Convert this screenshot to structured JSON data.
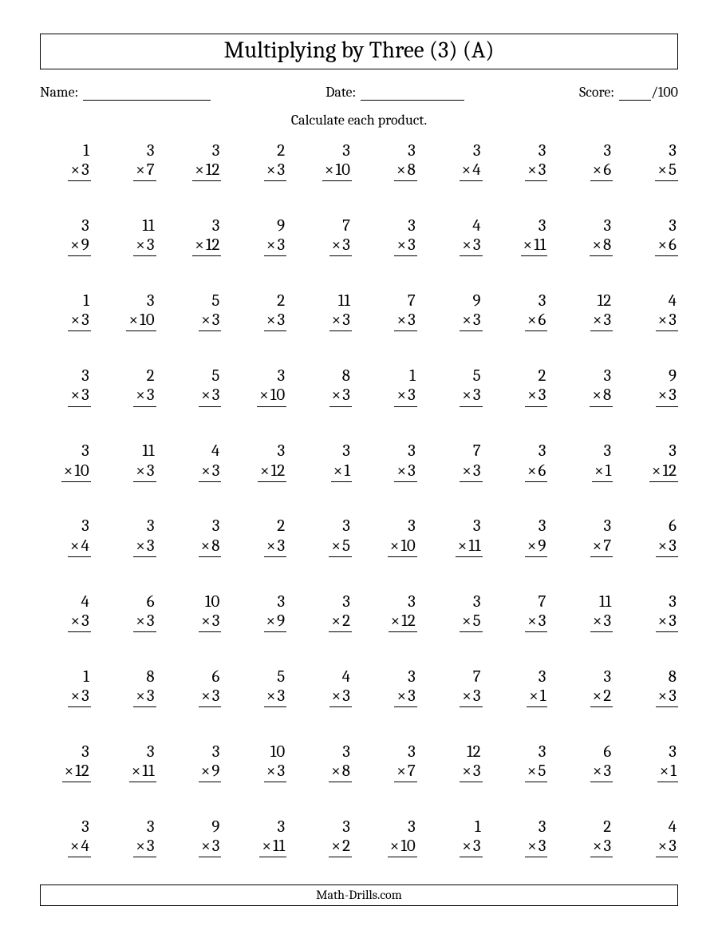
{
  "title": "Multiplying by Three (3) (A)",
  "header": {
    "name_label": "Name:",
    "date_label": "Date:",
    "score_label": "Score:",
    "score_suffix": "/100"
  },
  "instruction": "Calculate each product.",
  "footer": "Math-Drills.com",
  "multiply_symbol": "×",
  "layout": {
    "columns": 10,
    "rows": 10,
    "background_color": "#ffffff",
    "text_color": "#000000",
    "title_fontsize": 29,
    "body_fontsize": 18,
    "problem_fontsize": 21,
    "footer_fontsize": 16
  },
  "problems": [
    {
      "a": 1,
      "b": 3
    },
    {
      "a": 3,
      "b": 7
    },
    {
      "a": 3,
      "b": 12
    },
    {
      "a": 2,
      "b": 3
    },
    {
      "a": 3,
      "b": 10
    },
    {
      "a": 3,
      "b": 8
    },
    {
      "a": 3,
      "b": 4
    },
    {
      "a": 3,
      "b": 3
    },
    {
      "a": 3,
      "b": 6
    },
    {
      "a": 3,
      "b": 5
    },
    {
      "a": 3,
      "b": 9
    },
    {
      "a": 11,
      "b": 3
    },
    {
      "a": 3,
      "b": 12
    },
    {
      "a": 9,
      "b": 3
    },
    {
      "a": 7,
      "b": 3
    },
    {
      "a": 3,
      "b": 3
    },
    {
      "a": 4,
      "b": 3
    },
    {
      "a": 3,
      "b": 11
    },
    {
      "a": 3,
      "b": 8
    },
    {
      "a": 3,
      "b": 6
    },
    {
      "a": 1,
      "b": 3
    },
    {
      "a": 3,
      "b": 10
    },
    {
      "a": 5,
      "b": 3
    },
    {
      "a": 2,
      "b": 3
    },
    {
      "a": 11,
      "b": 3
    },
    {
      "a": 7,
      "b": 3
    },
    {
      "a": 9,
      "b": 3
    },
    {
      "a": 3,
      "b": 6
    },
    {
      "a": 12,
      "b": 3
    },
    {
      "a": 4,
      "b": 3
    },
    {
      "a": 3,
      "b": 3
    },
    {
      "a": 2,
      "b": 3
    },
    {
      "a": 5,
      "b": 3
    },
    {
      "a": 3,
      "b": 10
    },
    {
      "a": 8,
      "b": 3
    },
    {
      "a": 1,
      "b": 3
    },
    {
      "a": 5,
      "b": 3
    },
    {
      "a": 2,
      "b": 3
    },
    {
      "a": 3,
      "b": 8
    },
    {
      "a": 9,
      "b": 3
    },
    {
      "a": 3,
      "b": 10
    },
    {
      "a": 11,
      "b": 3
    },
    {
      "a": 4,
      "b": 3
    },
    {
      "a": 3,
      "b": 12
    },
    {
      "a": 3,
      "b": 1
    },
    {
      "a": 3,
      "b": 3
    },
    {
      "a": 7,
      "b": 3
    },
    {
      "a": 3,
      "b": 6
    },
    {
      "a": 3,
      "b": 1
    },
    {
      "a": 3,
      "b": 12
    },
    {
      "a": 3,
      "b": 4
    },
    {
      "a": 3,
      "b": 3
    },
    {
      "a": 3,
      "b": 8
    },
    {
      "a": 2,
      "b": 3
    },
    {
      "a": 3,
      "b": 5
    },
    {
      "a": 3,
      "b": 10
    },
    {
      "a": 3,
      "b": 11
    },
    {
      "a": 3,
      "b": 9
    },
    {
      "a": 3,
      "b": 7
    },
    {
      "a": 6,
      "b": 3
    },
    {
      "a": 4,
      "b": 3
    },
    {
      "a": 6,
      "b": 3
    },
    {
      "a": 10,
      "b": 3
    },
    {
      "a": 3,
      "b": 9
    },
    {
      "a": 3,
      "b": 2
    },
    {
      "a": 3,
      "b": 12
    },
    {
      "a": 3,
      "b": 5
    },
    {
      "a": 7,
      "b": 3
    },
    {
      "a": 11,
      "b": 3
    },
    {
      "a": 3,
      "b": 3
    },
    {
      "a": 1,
      "b": 3
    },
    {
      "a": 8,
      "b": 3
    },
    {
      "a": 6,
      "b": 3
    },
    {
      "a": 5,
      "b": 3
    },
    {
      "a": 4,
      "b": 3
    },
    {
      "a": 3,
      "b": 3
    },
    {
      "a": 7,
      "b": 3
    },
    {
      "a": 3,
      "b": 1
    },
    {
      "a": 3,
      "b": 2
    },
    {
      "a": 8,
      "b": 3
    },
    {
      "a": 3,
      "b": 12
    },
    {
      "a": 3,
      "b": 11
    },
    {
      "a": 3,
      "b": 9
    },
    {
      "a": 10,
      "b": 3
    },
    {
      "a": 3,
      "b": 8
    },
    {
      "a": 3,
      "b": 7
    },
    {
      "a": 12,
      "b": 3
    },
    {
      "a": 3,
      "b": 5
    },
    {
      "a": 6,
      "b": 3
    },
    {
      "a": 3,
      "b": 1
    },
    {
      "a": 3,
      "b": 4
    },
    {
      "a": 3,
      "b": 3
    },
    {
      "a": 9,
      "b": 3
    },
    {
      "a": 3,
      "b": 11
    },
    {
      "a": 3,
      "b": 2
    },
    {
      "a": 3,
      "b": 10
    },
    {
      "a": 1,
      "b": 3
    },
    {
      "a": 3,
      "b": 3
    },
    {
      "a": 2,
      "b": 3
    },
    {
      "a": 4,
      "b": 3
    }
  ]
}
